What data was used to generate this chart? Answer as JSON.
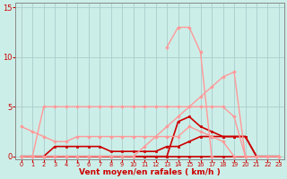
{
  "xlabel": "Vent moyen/en rafales ( km/h )",
  "bg_color": "#cceee8",
  "grid_color": "#aacccc",
  "xlim": [
    -0.5,
    23.5
  ],
  "ylim": [
    -0.3,
    15.5
  ],
  "yticks": [
    0,
    5,
    10,
    15
  ],
  "xticks": [
    0,
    1,
    2,
    3,
    4,
    5,
    6,
    7,
    8,
    9,
    10,
    11,
    12,
    13,
    14,
    15,
    16,
    17,
    18,
    19,
    20,
    21,
    22,
    23
  ],
  "series": [
    {
      "x": [
        0,
        1,
        2,
        3,
        4,
        5,
        6,
        7,
        8,
        9,
        10,
        11,
        12,
        13,
        14,
        15,
        16,
        17,
        18,
        19,
        20,
        21,
        22,
        23
      ],
      "y": [
        0,
        0,
        0,
        0,
        0,
        0,
        0,
        0,
        0,
        0,
        0,
        0,
        0,
        0,
        0,
        0,
        0,
        0,
        0,
        0,
        0,
        0,
        0,
        0
      ],
      "color": "#cc0000",
      "lw": 1.2,
      "marker": "s",
      "ms": 2.0
    },
    {
      "x": [
        0,
        1,
        2,
        3,
        4,
        5,
        6,
        7,
        8,
        9,
        10,
        11,
        12,
        13,
        14,
        15,
        16,
        17,
        18,
        19,
        20,
        21,
        22,
        23
      ],
      "y": [
        0,
        0,
        0,
        1,
        1,
        1,
        1,
        1,
        0.5,
        0.5,
        0.5,
        0.5,
        0.5,
        1,
        1,
        1.5,
        2,
        2,
        2,
        2,
        2,
        0,
        0,
        0
      ],
      "color": "#cc0000",
      "lw": 1.2,
      "marker": "s",
      "ms": 2.0
    },
    {
      "x": [
        0,
        1,
        2,
        3,
        4,
        5,
        6,
        7,
        8,
        9,
        10,
        11,
        12,
        13,
        14,
        15,
        16,
        17,
        18,
        19,
        20,
        21,
        22,
        23
      ],
      "y": [
        0,
        0,
        0,
        0,
        0,
        0,
        0,
        0,
        0,
        0,
        0,
        0,
        0,
        0,
        3.5,
        4,
        3,
        2.5,
        2,
        2,
        2,
        0,
        0,
        0
      ],
      "color": "#cc0000",
      "lw": 1.2,
      "marker": "s",
      "ms": 2.0
    },
    {
      "x": [
        0,
        1,
        2,
        3,
        4,
        5,
        6,
        7,
        8,
        9,
        10,
        11,
        12,
        13,
        14,
        15,
        16,
        17,
        18,
        19,
        20,
        21,
        22,
        23
      ],
      "y": [
        0,
        0,
        5,
        5,
        5,
        5,
        5,
        5,
        5,
        5,
        5,
        5,
        5,
        5,
        5,
        5,
        5,
        5,
        5,
        4,
        0,
        0,
        0,
        0
      ],
      "color": "#ff9999",
      "lw": 1.0,
      "marker": "D",
      "ms": 1.8
    },
    {
      "x": [
        0,
        1,
        2,
        3,
        4,
        5,
        6,
        7,
        8,
        9,
        10,
        11,
        12,
        13,
        14,
        15,
        16,
        17,
        18,
        19,
        20,
        21,
        22,
        23
      ],
      "y": [
        3,
        2.5,
        2,
        1.5,
        1.5,
        2,
        2,
        2,
        2,
        2,
        2,
        2,
        2,
        2,
        2,
        3,
        2.5,
        2,
        1.5,
        0,
        0,
        0,
        0,
        0
      ],
      "color": "#ff9999",
      "lw": 1.0,
      "marker": "D",
      "ms": 1.8
    },
    {
      "x": [
        13,
        14,
        15,
        16,
        17
      ],
      "y": [
        11,
        13,
        13,
        10.5,
        0
      ],
      "color": "#ff9999",
      "lw": 1.0,
      "marker": "D",
      "ms": 1.8
    },
    {
      "x": [
        0,
        1,
        2,
        3,
        4,
        5,
        6,
        7,
        8,
        9,
        10,
        11,
        12,
        13,
        14,
        15,
        16,
        17,
        18,
        19,
        20,
        21,
        22,
        23
      ],
      "y": [
        0,
        0,
        0,
        0,
        0,
        0,
        0,
        0,
        0,
        0,
        0,
        1,
        2,
        3,
        4,
        5,
        6,
        7,
        8,
        8.5,
        0,
        0,
        0,
        0
      ],
      "color": "#ff9999",
      "lw": 1.0,
      "marker": "D",
      "ms": 1.8
    }
  ]
}
